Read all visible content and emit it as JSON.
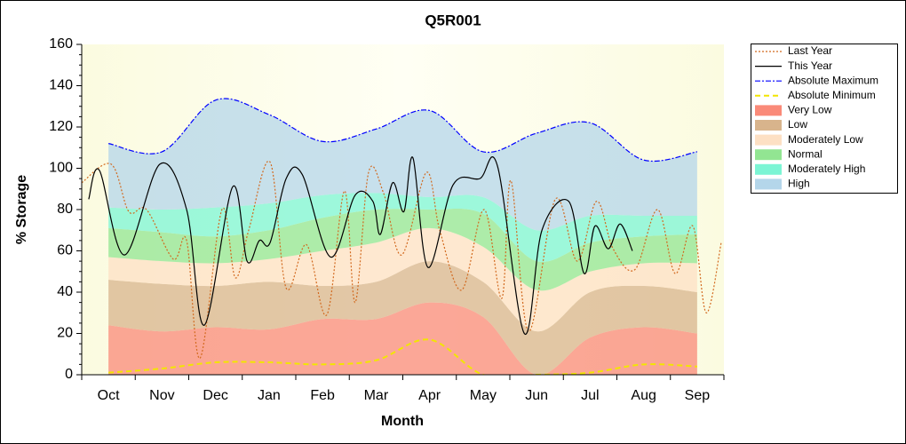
{
  "chart_data": {
    "type": "storage-bands",
    "title": "Q5R001",
    "x_label": "Month",
    "y_label": "% Storage",
    "categories": [
      "Oct",
      "Nov",
      "Dec",
      "Jan",
      "Feb",
      "Mar",
      "Apr",
      "May",
      "Jun",
      "Jul",
      "Aug",
      "Sep"
    ],
    "xlim": [
      0,
      12
    ],
    "ylim": [
      0,
      160
    ],
    "yticks": [
      0,
      20,
      40,
      60,
      80,
      100,
      120,
      140,
      160
    ],
    "series": [
      {
        "name": "Last Year",
        "mark": "line",
        "dash": "dotted",
        "color": "#d2691e",
        "x": [
          0,
          0.55,
          0.88,
          1.21,
          1.71,
          1.96,
          2.21,
          2.62,
          2.87,
          3.12,
          3.52,
          3.82,
          4.2,
          4.58,
          4.91,
          5.11,
          5.36,
          5.64,
          5.98,
          6.44,
          6.69,
          7.1,
          7.52,
          7.85,
          8.02,
          8.35,
          8.85,
          9.26,
          9.62,
          9.93,
          10.34,
          10.76,
          11.09,
          11.42,
          11.67,
          11.95
        ],
        "values": [
          93,
          102,
          79,
          80,
          56,
          65,
          8,
          80,
          47,
          70,
          103,
          42,
          63,
          29,
          89,
          35,
          98,
          88,
          58,
          98,
          70,
          41,
          80,
          37,
          94,
          21,
          85,
          55,
          84,
          61,
          51,
          80,
          49,
          72,
          30,
          64
        ]
      },
      {
        "name": "This Year",
        "mark": "line",
        "dash": "solid",
        "color": "#000000",
        "x": [
          0.13,
          0.33,
          0.8,
          1.46,
          1.96,
          2.29,
          2.82,
          3.09,
          3.32,
          3.52,
          3.82,
          4.12,
          4.65,
          5.11,
          5.44,
          5.58,
          5.81,
          6.02,
          6.19,
          6.47,
          6.94,
          7.44,
          7.77,
          8.27,
          8.6,
          9.1,
          9.39,
          9.59,
          9.84,
          10.06,
          10.29
        ],
        "values": [
          85,
          99,
          58,
          102,
          80,
          24,
          91,
          55,
          65,
          64,
          95,
          97,
          57,
          87,
          84,
          68,
          93,
          79,
          105,
          52,
          92,
          95,
          101,
          20,
          70,
          84,
          49,
          72,
          61,
          73,
          60
        ]
      },
      {
        "name": "Absolute Maximum",
        "mark": "line",
        "dash": "dashdot",
        "color": "#0000ff",
        "x": [
          0.5,
          1.5,
          2.5,
          3.5,
          4.5,
          5.5,
          6.5,
          7.5,
          8.5,
          9.5,
          10.5,
          11.5
        ],
        "values": [
          112,
          108,
          133,
          126,
          113,
          119,
          128,
          108,
          117,
          122,
          104,
          108
        ]
      },
      {
        "name": "Absolute Minimum",
        "mark": "line",
        "dash": "dashed",
        "color": "#f2e600",
        "x": [
          0.5,
          1.5,
          2.5,
          3.5,
          4.5,
          5.5,
          6.5,
          7.5,
          8.5,
          9.5,
          10.5,
          11.5
        ],
        "values": [
          1,
          3,
          6,
          6,
          5,
          7,
          17,
          0,
          0,
          1,
          5,
          4
        ]
      },
      {
        "name": "Very Low",
        "mark": "area",
        "color": "#fa8a78",
        "x": [
          0.5,
          1.5,
          2.5,
          3.5,
          4.5,
          5.5,
          6.5,
          7.5,
          8.5,
          9.5,
          10.5,
          11.5
        ],
        "values": [
          24,
          21,
          23,
          22,
          27,
          27,
          35,
          28,
          0,
          18,
          23,
          20
        ]
      },
      {
        "name": "Low",
        "mark": "area",
        "color": "#d8b48c",
        "x": [
          0.5,
          1.5,
          2.5,
          3.5,
          4.5,
          5.5,
          6.5,
          7.5,
          8.5,
          9.5,
          10.5,
          11.5
        ],
        "values": [
          22,
          23,
          20,
          23,
          16,
          18,
          20,
          17,
          21,
          22,
          20,
          20
        ]
      },
      {
        "name": "Moderately Low",
        "mark": "area",
        "color": "#fde0c4",
        "x": [
          0.5,
          1.5,
          2.5,
          3.5,
          4.5,
          5.5,
          6.5,
          7.5,
          8.5,
          9.5,
          10.5,
          11.5
        ],
        "values": [
          11,
          11,
          11,
          11,
          17,
          19,
          16,
          17,
          20,
          10,
          11,
          14
        ]
      },
      {
        "name": "Normal",
        "mark": "area",
        "color": "#92e592",
        "x": [
          0.5,
          1.5,
          2.5,
          3.5,
          4.5,
          5.5,
          6.5,
          7.5,
          8.5,
          9.5,
          10.5,
          11.5
        ],
        "values": [
          14,
          14,
          13,
          14,
          16,
          16,
          9,
          16,
          14,
          14,
          13,
          14
        ]
      },
      {
        "name": "Moderately High",
        "mark": "area",
        "color": "#7cf5d4",
        "x": [
          0.5,
          1.5,
          2.5,
          3.5,
          4.5,
          5.5,
          6.5,
          7.5,
          8.5,
          9.5,
          10.5,
          11.5
        ],
        "values": [
          10,
          11,
          14,
          13,
          11,
          8,
          6,
          8,
          15,
          13,
          10,
          9
        ]
      },
      {
        "name": "High",
        "mark": "area",
        "color": "#b4d6ea",
        "x": [
          0.5,
          1.5,
          2.5,
          3.5,
          4.5,
          5.5,
          6.5,
          7.5,
          8.5,
          9.5,
          10.5,
          11.5
        ],
        "values": [
          31,
          28,
          52,
          43,
          26,
          31,
          42,
          22,
          47,
          45,
          27,
          31
        ]
      }
    ]
  }
}
